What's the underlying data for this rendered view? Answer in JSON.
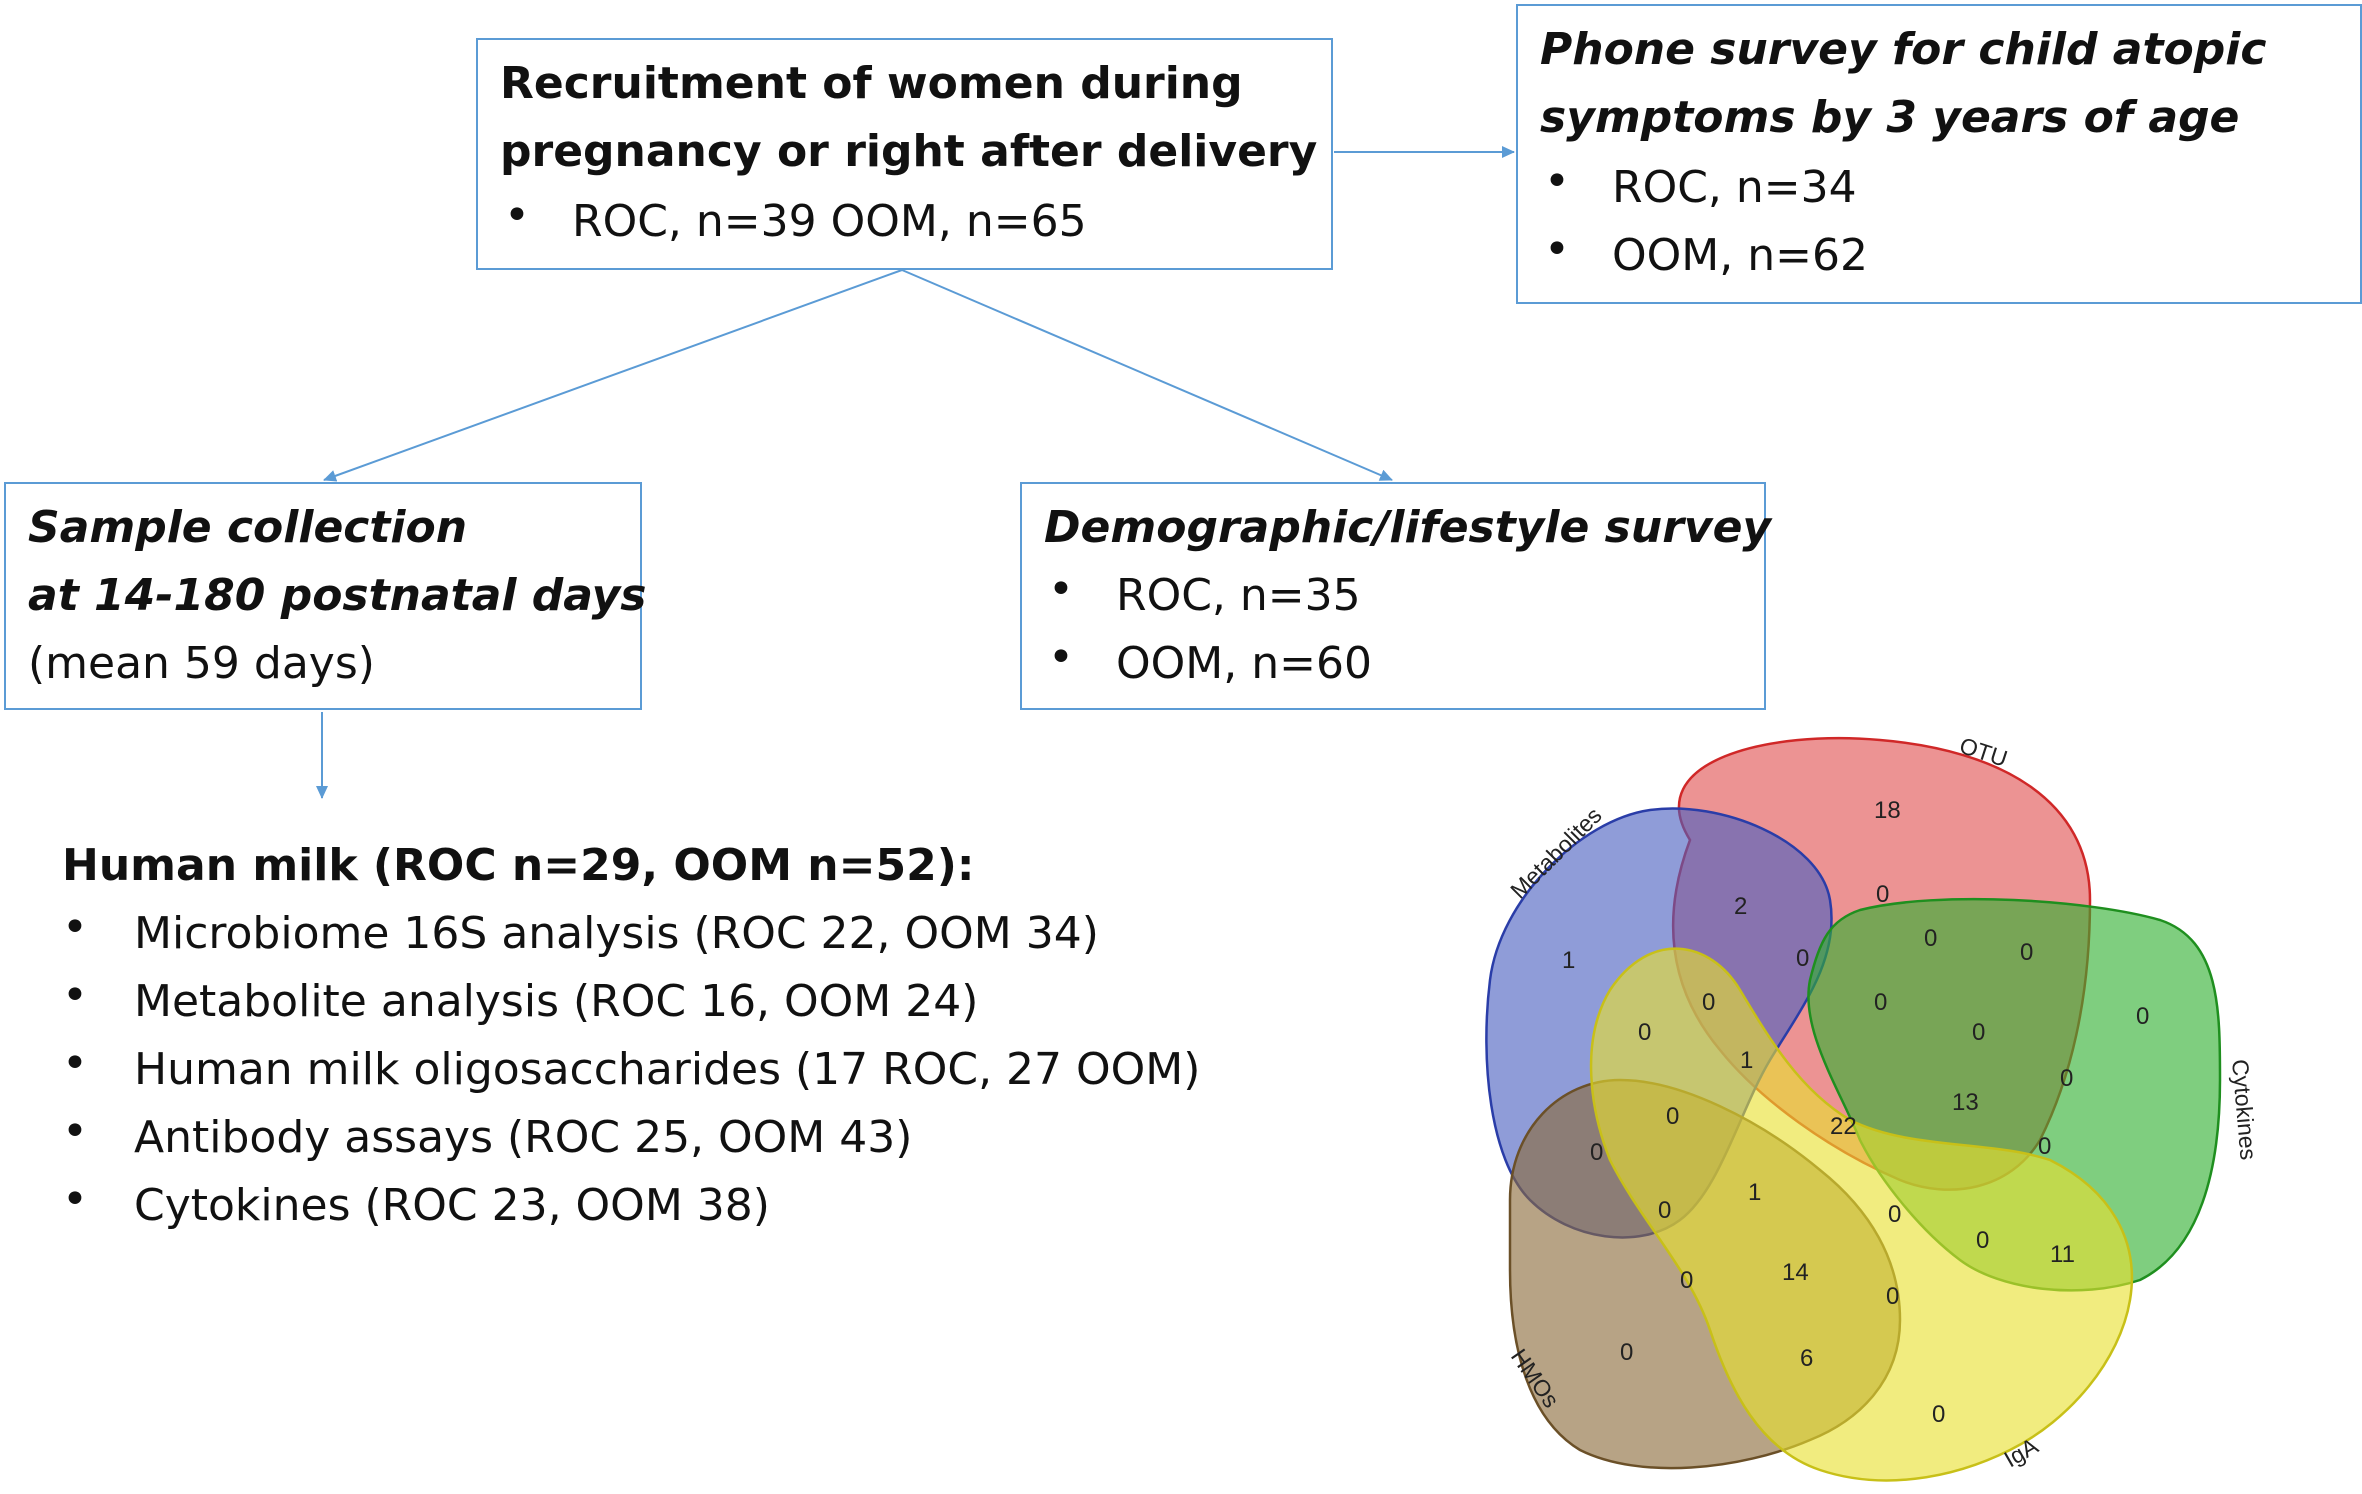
{
  "boxes": {
    "recruitment": {
      "title_line1": "Recruitment of women during",
      "title_line2": "pregnancy or right after delivery",
      "bullet1": "ROC, n=39 OOM, n=65"
    },
    "phone_survey": {
      "title_line1": "Phone survey for child atopic",
      "title_line2": "symptoms by 3 years of age",
      "bullet1": "ROC, n=34",
      "bullet2": "OOM, n=62"
    },
    "sample_collection": {
      "title_line1": "Sample collection",
      "title_line2": "at 14-180 postnatal days",
      "line3": "(mean 59 days)"
    },
    "demographic_survey": {
      "title_line1": "Demographic/lifestyle survey",
      "bullet1": "ROC, n=35",
      "bullet2": "OOM, n=60"
    }
  },
  "human_milk": {
    "title": "Human milk (ROC n=29, OOM n=52):",
    "items": [
      "Microbiome 16S analysis (ROC 22, OOM 34)",
      "Metabolite analysis (ROC 16, OOM 24)",
      "Human milk oligosaccharides (17 ROC, 27 OOM)",
      "Antibody assays (ROC 25, OOM 43)",
      "Cytokines (ROC 23, OOM 38)"
    ]
  },
  "bullet_char": "•",
  "venn": {
    "sets": [
      {
        "label": "OTU",
        "color": "#e05050"
      },
      {
        "label": "Metabolites",
        "color": "#4a5fc0"
      },
      {
        "label": "Cytokines",
        "color": "#30b030"
      },
      {
        "label": "HMOs",
        "color": "#8a6a3a"
      },
      {
        "label": "IgA",
        "color": "#e8e030"
      }
    ],
    "region_values": [
      "18",
      "1",
      "0",
      "0",
      "0",
      "2",
      "0",
      "0",
      "0",
      "0",
      "0",
      "0",
      "0",
      "0",
      "0",
      "0",
      "1",
      "22",
      "13",
      "0",
      "0",
      "1",
      "0",
      "0",
      "11",
      "0",
      "14",
      "0",
      "6",
      "0"
    ]
  }
}
